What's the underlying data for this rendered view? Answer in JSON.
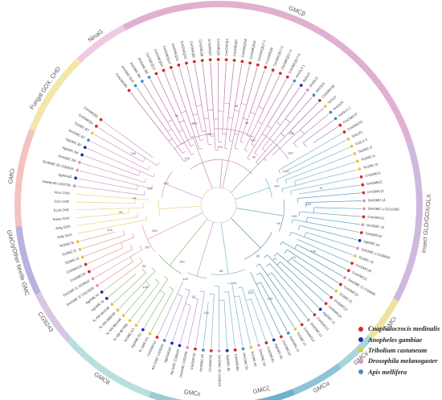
{
  "species_legend": [
    {
      "name": "Cnaphalocrocis medinalis",
      "color": "#d62b2b"
    },
    {
      "name": "Anopheles gambiae",
      "color": "#1f2fa8"
    },
    {
      "name": "Tribolium castaneum",
      "color": "#e8c43a"
    },
    {
      "name": "Drosophila melanogaster",
      "color": "#e58fc6"
    },
    {
      "name": "Apis mellifera",
      "color": "#3f8fd0"
    }
  ],
  "clades": [
    {
      "label": "GMCβ",
      "color": "#e1b0d0",
      "start": 332,
      "end": 72
    },
    {
      "label": "Insect GLD/GOX/GLX",
      "color": "#cfb8dd",
      "start": 72,
      "end": 118
    },
    {
      "label": "GMCι",
      "color": "#ede3a0",
      "start": 118,
      "end": 131
    },
    {
      "label": "GMCγ",
      "color": "#a9d6dd",
      "start": 131,
      "end": 143
    },
    {
      "label": "GMCα",
      "color": "#8fc3d6",
      "start": 143,
      "end": 158
    },
    {
      "label": "GMCζ",
      "color": "#6fb1cc",
      "start": 158,
      "end": 176
    },
    {
      "label": "GMCε",
      "color": "#9ccbd2",
      "start": 176,
      "end": 200
    },
    {
      "label": "GMCθ",
      "color": "#b8dfe0",
      "start": 200,
      "end": 228
    },
    {
      "label": "CG9243",
      "color": "#d9c6e4",
      "start": 228,
      "end": 244
    },
    {
      "label": "GMCη/Other beetle GMC",
      "color": "#b9b2df",
      "start": 244,
      "end": 264
    },
    {
      "label": "GMCι",
      "color": "#f5c2c2",
      "start": 264,
      "end": 292
    },
    {
      "label": "Fungal GOX, CHD",
      "color": "#f2e7a8",
      "start": 292,
      "end": 316
    },
    {
      "label": "NinaG",
      "color": "#f0c9e2",
      "start": 316,
      "end": 332
    }
  ],
  "leaves": [
    {
      "label": "CmGMCβ6",
      "species": 0
    },
    {
      "label": "AmGMC B10",
      "species": 4
    },
    {
      "label": "AmGMC B9",
      "species": 4
    },
    {
      "label": "AmGMC B8",
      "species": 4
    },
    {
      "label": "CmGMCβ13",
      "species": 0
    },
    {
      "label": "CmGMCβ14",
      "species": 0
    },
    {
      "label": "CmGMCβ12",
      "species": 0
    },
    {
      "label": "CmGMCβ11",
      "species": 0
    },
    {
      "label": "CmGMCβ10",
      "species": 0
    },
    {
      "label": "CmGMCβ9",
      "species": 0
    },
    {
      "label": "CmGMCβ8",
      "species": 0
    },
    {
      "label": "CmGMCβ7",
      "species": 0
    },
    {
      "label": "CmGMCβ5",
      "species": 0
    },
    {
      "label": "CmGMCβ4",
      "species": 0
    },
    {
      "label": "CmGMCβ3",
      "species": 0
    },
    {
      "label": "CmGMCβ18",
      "species": 0
    },
    {
      "label": "CmGMCβ19",
      "species": 0
    },
    {
      "label": "CmGMCβ17-1",
      "species": 0
    },
    {
      "label": "CmGMCβ0",
      "species": 0
    },
    {
      "label": "CmGMCβ17-2",
      "species": 0
    },
    {
      "label": "CmGMCβ17-4",
      "species": 0
    },
    {
      "label": "CmGMCβ17-3",
      "species": 0
    },
    {
      "label": "AmGLX 1",
      "species": 4
    },
    {
      "label": "AgGLD",
      "species": 1
    },
    {
      "label": "DmGLD",
      "species": 3
    },
    {
      "label": "AmGLD",
      "species": 4
    },
    {
      "label": "CmGMC36",
      "species": 0
    },
    {
      "label": "TcGLD",
      "species": 2
    },
    {
      "label": "AmGOX",
      "species": 4
    },
    {
      "label": "AmGLX 2",
      "species": 4
    },
    {
      "label": "CmGMC37",
      "species": 0
    },
    {
      "label": "CmGMC25",
      "species": 0
    },
    {
      "label": "TcGLX1",
      "species": 2
    },
    {
      "label": "TcGLX 4",
      "species": 2
    },
    {
      "label": "TcGMC i2",
      "species": 2
    },
    {
      "label": "TcGMC i1",
      "species": 2
    },
    {
      "label": "TcGMC i3",
      "species": 2
    },
    {
      "label": "CmGMCi1",
      "species": 0
    },
    {
      "label": "CmGMCi2",
      "species": 0
    },
    {
      "label": "CmGMCγ1",
      "species": 0
    },
    {
      "label": "DmGMC γ1",
      "species": 3
    },
    {
      "label": "DmGMC γ CG12398",
      "species": 3
    },
    {
      "label": "CmGMCα1",
      "species": 0
    },
    {
      "label": "DmGMC α1",
      "species": 3
    },
    {
      "label": "CmGMCα2",
      "species": 0
    },
    {
      "label": "AgGMC α1",
      "species": 1
    },
    {
      "label": "DmGMC α CG9509",
      "species": 3
    },
    {
      "label": "TcGMC α1",
      "species": 2
    },
    {
      "label": "CmGMCα3",
      "species": 0
    },
    {
      "label": "CmGMCζ1",
      "species": 0
    },
    {
      "label": "DmGMC ζ1 CG6603",
      "species": 3
    },
    {
      "label": "CmGMCζ3",
      "species": 0
    },
    {
      "label": "TcGMC ζ1",
      "species": 2
    },
    {
      "label": "CmGMCζ2",
      "species": 0
    },
    {
      "label": "CmGMCζ4",
      "species": 0
    },
    {
      "label": "AgGMC ε1",
      "species": 1
    },
    {
      "label": "CmGMCε1",
      "species": 0
    },
    {
      "label": "DmGMC ε1",
      "species": 3
    },
    {
      "label": "CmGMCε2",
      "species": 0
    },
    {
      "label": "TcGMC ε1",
      "species": 2
    },
    {
      "label": "AmGMC ε1",
      "species": 4
    },
    {
      "label": "CmGMCε3",
      "species": 0
    },
    {
      "label": "AgGMC θ1",
      "species": 1
    },
    {
      "label": "CmGMCθ1",
      "species": 0
    },
    {
      "label": "DmGMC θ1",
      "species": 3
    },
    {
      "label": "TcGMC θ1",
      "species": 2
    },
    {
      "label": "AmGMC θ1",
      "species": 4
    },
    {
      "label": "CmGMCθ2",
      "species": 0
    },
    {
      "label": "AgGMC θ2",
      "species": 1
    },
    {
      "label": "DmGMC θ2 CG9518",
      "species": 3
    },
    {
      "label": "CmGMCθ3",
      "species": 0
    },
    {
      "label": "AmGMC θ2",
      "species": 4
    },
    {
      "label": "CmGMC43",
      "species": 0
    },
    {
      "label": "DmGMC CG9243",
      "species": 3
    },
    {
      "label": "Ag GMC CG9243",
      "species": 1
    },
    {
      "label": "AgCG4242",
      "species": 1
    },
    {
      "label": "Am GMC CG9243",
      "species": 4
    },
    {
      "label": "CmGMCη1",
      "species": 0
    },
    {
      "label": "Tc GMC K1",
      "species": 2
    },
    {
      "label": "AgGMC K1",
      "species": 1
    },
    {
      "label": "TcGMC K3",
      "species": 2
    },
    {
      "label": "Tc XM 967481",
      "species": 2
    },
    {
      "label": "Tc XM 961446",
      "species": 2
    },
    {
      "label": "Tc XM 968249",
      "species": 2
    },
    {
      "label": "Tc XM 961538",
      "species": 2
    },
    {
      "label": "AgGMC l3",
      "species": 1
    },
    {
      "label": "AgGMC l4",
      "species": 1
    },
    {
      "label": "DmGMC l2 CG12539",
      "species": 3
    },
    {
      "label": "DmGMC l1 CG9522",
      "species": 3
    },
    {
      "label": "CmGMC26",
      "species": 0
    },
    {
      "label": "CmGMC24",
      "species": 0
    },
    {
      "label": "TcGMC l3",
      "species": 2
    },
    {
      "label": "TcGMC l2",
      "species": 2
    },
    {
      "label": "TcGMC l5",
      "species": 2
    },
    {
      "label": "Anig GOX",
      "species": -1
    },
    {
      "label": "Anig GOX",
      "species": -1
    },
    {
      "label": "Pamy GOX",
      "species": -1
    },
    {
      "label": "Ecoli CHD",
      "species": -1
    },
    {
      "label": "Ccin CHD",
      "species": -1
    },
    {
      "label": "Hcru CHD",
      "species": -1
    },
    {
      "label": "DmNinaG CG6728",
      "species": 3
    },
    {
      "label": "AgNinaG",
      "species": 1
    },
    {
      "label": "DmGMC B1 CG9519",
      "species": 3
    },
    {
      "label": "DmGMC B4",
      "species": 3
    },
    {
      "label": "AgGMC B4",
      "species": 1
    },
    {
      "label": "AgGMC B7",
      "species": 1
    },
    {
      "label": "AmGMC B7",
      "species": 4
    },
    {
      "label": "TcGMC B7",
      "species": 2
    },
    {
      "label": "CmGMCβ1",
      "species": 0
    },
    {
      "label": "CmGMCβ2",
      "species": 0
    }
  ],
  "bootstraps": [
    "100",
    "98",
    "100",
    "94",
    "100",
    "96",
    "96",
    "100",
    "52",
    "100",
    "100",
    "100",
    "100",
    "76",
    "100",
    "100",
    "99",
    "100",
    "74",
    "97",
    "99",
    "100",
    "100",
    "100",
    "65",
    "100",
    "92",
    "100",
    "100",
    "100",
    "98",
    "100",
    "100",
    "100",
    "99",
    "94",
    "100",
    "100",
    "100"
  ],
  "branches": [
    {
      "from": 0,
      "to": 27,
      "depth": 0.18,
      "color": "#c98bb3"
    },
    {
      "from": 0,
      "to": 11,
      "depth": 0.4,
      "color": "#c98bb3"
    },
    {
      "from": 11,
      "to": 21,
      "depth": 0.44,
      "color": "#c98bb3"
    },
    {
      "from": 22,
      "to": 30,
      "depth": 0.5,
      "color": "#a98bc2"
    },
    {
      "from": 31,
      "to": 38,
      "depth": 0.25,
      "color": "#7bb6c9"
    },
    {
      "from": 39,
      "to": 48,
      "depth": 0.35,
      "color": "#5ba3c1"
    },
    {
      "from": 49,
      "to": 61,
      "depth": 0.3,
      "color": "#4f95b5"
    },
    {
      "from": 62,
      "to": 71,
      "depth": 0.38,
      "color": "#7bb6c9"
    },
    {
      "from": 72,
      "to": 77,
      "depth": 0.42,
      "color": "#b89ad0"
    },
    {
      "from": 78,
      "to": 85,
      "depth": 0.45,
      "color": "#8fbf74"
    },
    {
      "from": 86,
      "to": 93,
      "depth": 0.46,
      "color": "#e59a9a"
    },
    {
      "from": 94,
      "to": 99,
      "depth": 0.3,
      "color": "#e8d27a"
    },
    {
      "from": 100,
      "to": 109,
      "depth": 0.28,
      "color": "#d69ac4"
    }
  ]
}
